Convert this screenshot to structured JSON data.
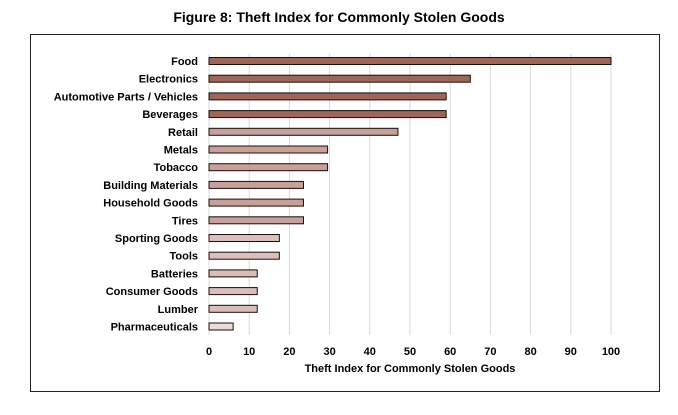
{
  "chart_data": {
    "type": "bar",
    "orientation": "horizontal",
    "title": "Figure 8: Theft Index for Commonly Stolen Goods",
    "xlabel": "Theft Index for Commonly Stolen Goods",
    "ylabel": "",
    "xlim": [
      0,
      100
    ],
    "xticks": [
      0,
      10,
      20,
      30,
      40,
      50,
      60,
      70,
      80,
      90,
      100
    ],
    "grid": "vertical",
    "legend": "none",
    "categories": [
      "Food",
      "Electronics",
      "Automotive Parts / Vehicles",
      "Beverages",
      "Retail",
      "Metals",
      "Tobacco",
      "Building Materials",
      "Household Goods",
      "Tires",
      "Sporting Goods",
      "Tools",
      "Batteries",
      "Consumer Goods",
      "Lumber",
      "Pharmaceuticals"
    ],
    "values": [
      100,
      65,
      59,
      59,
      47,
      29.5,
      29.5,
      23.5,
      23.5,
      23.5,
      17.5,
      17.5,
      12,
      12,
      12,
      6
    ],
    "colors": [
      "#9e6656",
      "#9e6656",
      "#9e6656",
      "#9e6656",
      "#c8a09a",
      "#c8a09a",
      "#c8a09a",
      "#c8a09a",
      "#c8a09a",
      "#c8a09a",
      "#dcbfba",
      "#dcbfba",
      "#d8bdb8",
      "#d8bdb8",
      "#d8bdb8",
      "#ecdcd9"
    ]
  }
}
